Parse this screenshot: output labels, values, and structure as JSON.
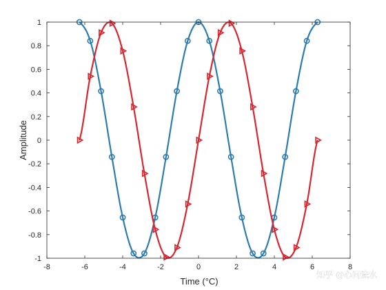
{
  "chart_data": {
    "type": "line",
    "title": "",
    "xlabel": "Time (°C)",
    "ylabel": "Amplitude",
    "xlim": [
      -8,
      8
    ],
    "ylim": [
      -1,
      1
    ],
    "x_ticks": [
      -8,
      -6,
      -4,
      -2,
      0,
      2,
      4,
      6,
      8
    ],
    "x_tick_labels": [
      "-8",
      "-6",
      "-4",
      "-2",
      "0",
      "2",
      "4",
      "6",
      "8"
    ],
    "y_ticks": [
      -1,
      -0.8,
      -0.6,
      -0.4,
      -0.2,
      0,
      0.2,
      0.4,
      0.6,
      0.8,
      1
    ],
    "y_tick_labels": [
      "-1",
      "-0.8",
      "-0.6",
      "-0.4",
      "-0.2",
      "0",
      "0.2",
      "0.4",
      "0.6",
      "0.8",
      "1"
    ],
    "grid": false,
    "box": true,
    "legend": "none",
    "series": [
      {
        "color": "#2e7bb0",
        "marker": "circle",
        "x": [
          -6.283,
          -5.712,
          -5.141,
          -4.57,
          -3.998,
          -3.427,
          -2.856,
          -2.285,
          -1.714,
          -1.142,
          -0.571,
          0.0,
          0.571,
          1.142,
          1.714,
          2.285,
          2.856,
          3.427,
          3.998,
          4.57,
          5.141,
          5.712,
          6.283
        ],
        "y": [
          1.0,
          0.841,
          0.415,
          -0.142,
          -0.655,
          -0.959,
          -0.959,
          -0.655,
          -0.142,
          0.415,
          0.841,
          1.0,
          0.841,
          0.415,
          -0.142,
          -0.655,
          -0.959,
          -0.959,
          -0.655,
          -0.142,
          0.415,
          0.841,
          1.0
        ]
      },
      {
        "color": "#d62730",
        "marker": "triangle-right",
        "x": [
          -6.283,
          -5.712,
          -5.141,
          -4.57,
          -3.998,
          -3.427,
          -2.856,
          -2.285,
          -1.714,
          -1.142,
          -0.571,
          0.0,
          0.571,
          1.142,
          1.714,
          2.285,
          2.856,
          3.427,
          3.998,
          4.57,
          5.141,
          5.712,
          6.283
        ],
        "y": [
          0.0,
          0.541,
          0.91,
          0.99,
          0.756,
          0.282,
          -0.282,
          -0.756,
          -0.99,
          -0.91,
          -0.541,
          0.0,
          0.541,
          0.91,
          0.99,
          0.756,
          0.282,
          -0.282,
          -0.756,
          -0.99,
          -0.91,
          -0.541,
          0.0
        ]
      }
    ]
  },
  "watermark": {
    "text": "知乎 @心间流水"
  }
}
